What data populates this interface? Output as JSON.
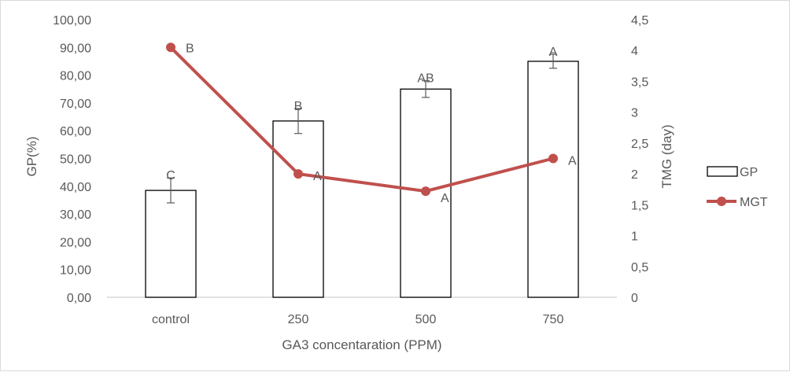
{
  "chart_data": {
    "type": "bar",
    "categories": [
      "control",
      "250",
      "500",
      "750"
    ],
    "xlabel": "GA3 concentaration (PPM)",
    "ylabel_left": "GP(%)",
    "ylabel_right": "TMG (day)",
    "ylim_left": [
      0,
      100
    ],
    "ylim_right": [
      0,
      4.5
    ],
    "yticks_left": [
      "0,00",
      "10,00",
      "20,00",
      "30,00",
      "40,00",
      "50,00",
      "60,00",
      "70,00",
      "80,00",
      "90,00",
      "100,00"
    ],
    "yticks_right": [
      "0",
      "0,5",
      "1",
      "1,5",
      "2",
      "2,5",
      "3",
      "3,5",
      "4",
      "4,5"
    ],
    "grid": false,
    "legend_position": "right",
    "series": [
      {
        "name": "GP",
        "type": "bar",
        "axis": "left",
        "values": [
          38.5,
          63.5,
          75,
          85
        ],
        "error": [
          4.5,
          4.5,
          3,
          2.5
        ],
        "labels": [
          "C",
          "B",
          "AB",
          "A"
        ],
        "color": "#ffffff",
        "edge_color": "#000000"
      },
      {
        "name": "MGT",
        "type": "line",
        "axis": "right",
        "values": [
          4.05,
          2.0,
          1.72,
          2.25
        ],
        "labels": [
          "B",
          "A",
          "A",
          "A"
        ],
        "color": "#c0504d"
      }
    ]
  }
}
